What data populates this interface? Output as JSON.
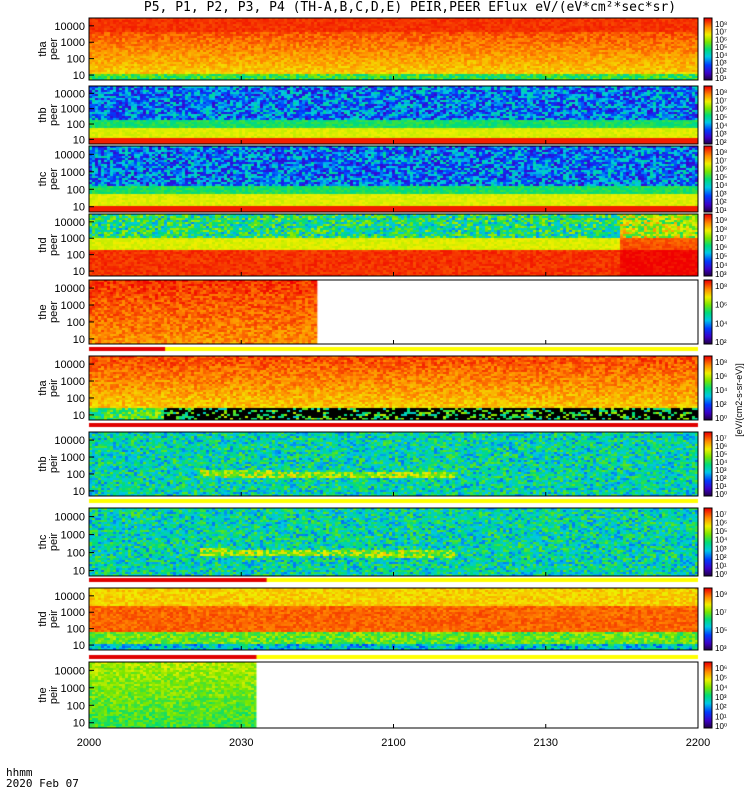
{
  "title": "P5, P1, P2, P3, P4 (TH-A,B,C,D,E) PEIR,PEER EFlux eV/(eV*cm²*sec*sr)",
  "footer": {
    "time_label": "hhmm",
    "date": "2020 Feb 07"
  },
  "colorbar_label": "[eV/(cm2-s-sr-eV)]",
  "chart_data": {
    "type": "heatmap",
    "xlabel": "hhmm",
    "x_ticks": [
      "2000",
      "2030",
      "2100",
      "2130",
      "2200"
    ],
    "x_range": [
      "20:00",
      "22:00"
    ],
    "y_scale": "log",
    "y_range": [
      5,
      30000
    ],
    "y_ticks": [
      "10",
      "100",
      "1000",
      "10000"
    ],
    "panels": [
      {
        "ylabel": "tha peer",
        "colorbar_ticks": [
          "10⁸",
          "10⁷",
          "10⁶",
          "10⁵",
          "10⁴",
          "10³",
          "10²",
          "10¹"
        ],
        "flag_bar": false,
        "data_end": "22:00"
      },
      {
        "ylabel": "thb peer",
        "colorbar_ticks": [
          "10⁸",
          "10⁷",
          "10⁶",
          "10⁵",
          "10⁴",
          "10³",
          "10²"
        ],
        "flag_bar": false,
        "data_end": "22:00"
      },
      {
        "ylabel": "thc peer",
        "colorbar_ticks": [
          "10⁸",
          "10⁷",
          "10⁶",
          "10⁵",
          "10⁴",
          "10³",
          "10²",
          "10¹"
        ],
        "flag_bar": false,
        "data_end": "22:00"
      },
      {
        "ylabel": "thd peer",
        "colorbar_ticks": [
          "10⁹",
          "10⁸",
          "10⁷",
          "10⁶",
          "10⁵",
          "10⁴",
          "10³"
        ],
        "flag_bar": false,
        "data_end": "22:00"
      },
      {
        "ylabel": "the peer",
        "colorbar_ticks": [
          "10⁸",
          "10⁶",
          "10⁴",
          "10²"
        ],
        "flag_bar": true,
        "flag_red_until": "20:15",
        "data_end": "20:45"
      },
      {
        "ylabel": "tha peir",
        "colorbar_ticks": [
          "10⁸",
          "10⁶",
          "10⁴",
          "10²",
          "10⁰"
        ],
        "flag_bar": true,
        "flag_red_until": "22:00",
        "data_end": "22:00"
      },
      {
        "ylabel": "thb peir",
        "colorbar_ticks": [
          "10⁷",
          "10⁶",
          "10⁵",
          "10⁴",
          "10³",
          "10²",
          "10¹",
          "10⁰"
        ],
        "flag_bar": true,
        "flag_red_until": "20:00",
        "data_end": "22:00"
      },
      {
        "ylabel": "thc peir",
        "colorbar_ticks": [
          "10⁷",
          "10⁶",
          "10⁵",
          "10⁴",
          "10³",
          "10²",
          "10¹",
          "10⁰"
        ],
        "flag_bar": true,
        "flag_red_until": "20:35",
        "data_end": "22:00"
      },
      {
        "ylabel": "thd peir",
        "colorbar_ticks": [
          "10⁹",
          "10⁷",
          "10⁵",
          "10³"
        ],
        "flag_bar": true,
        "flag_red_until": "20:33",
        "data_end": "22:00"
      },
      {
        "ylabel": "the peir",
        "colorbar_ticks": [
          "10⁶",
          "10⁵",
          "10⁴",
          "10³",
          "10²",
          "10¹",
          "10⁰"
        ],
        "flag_bar": false,
        "data_end": "20:33"
      }
    ]
  }
}
